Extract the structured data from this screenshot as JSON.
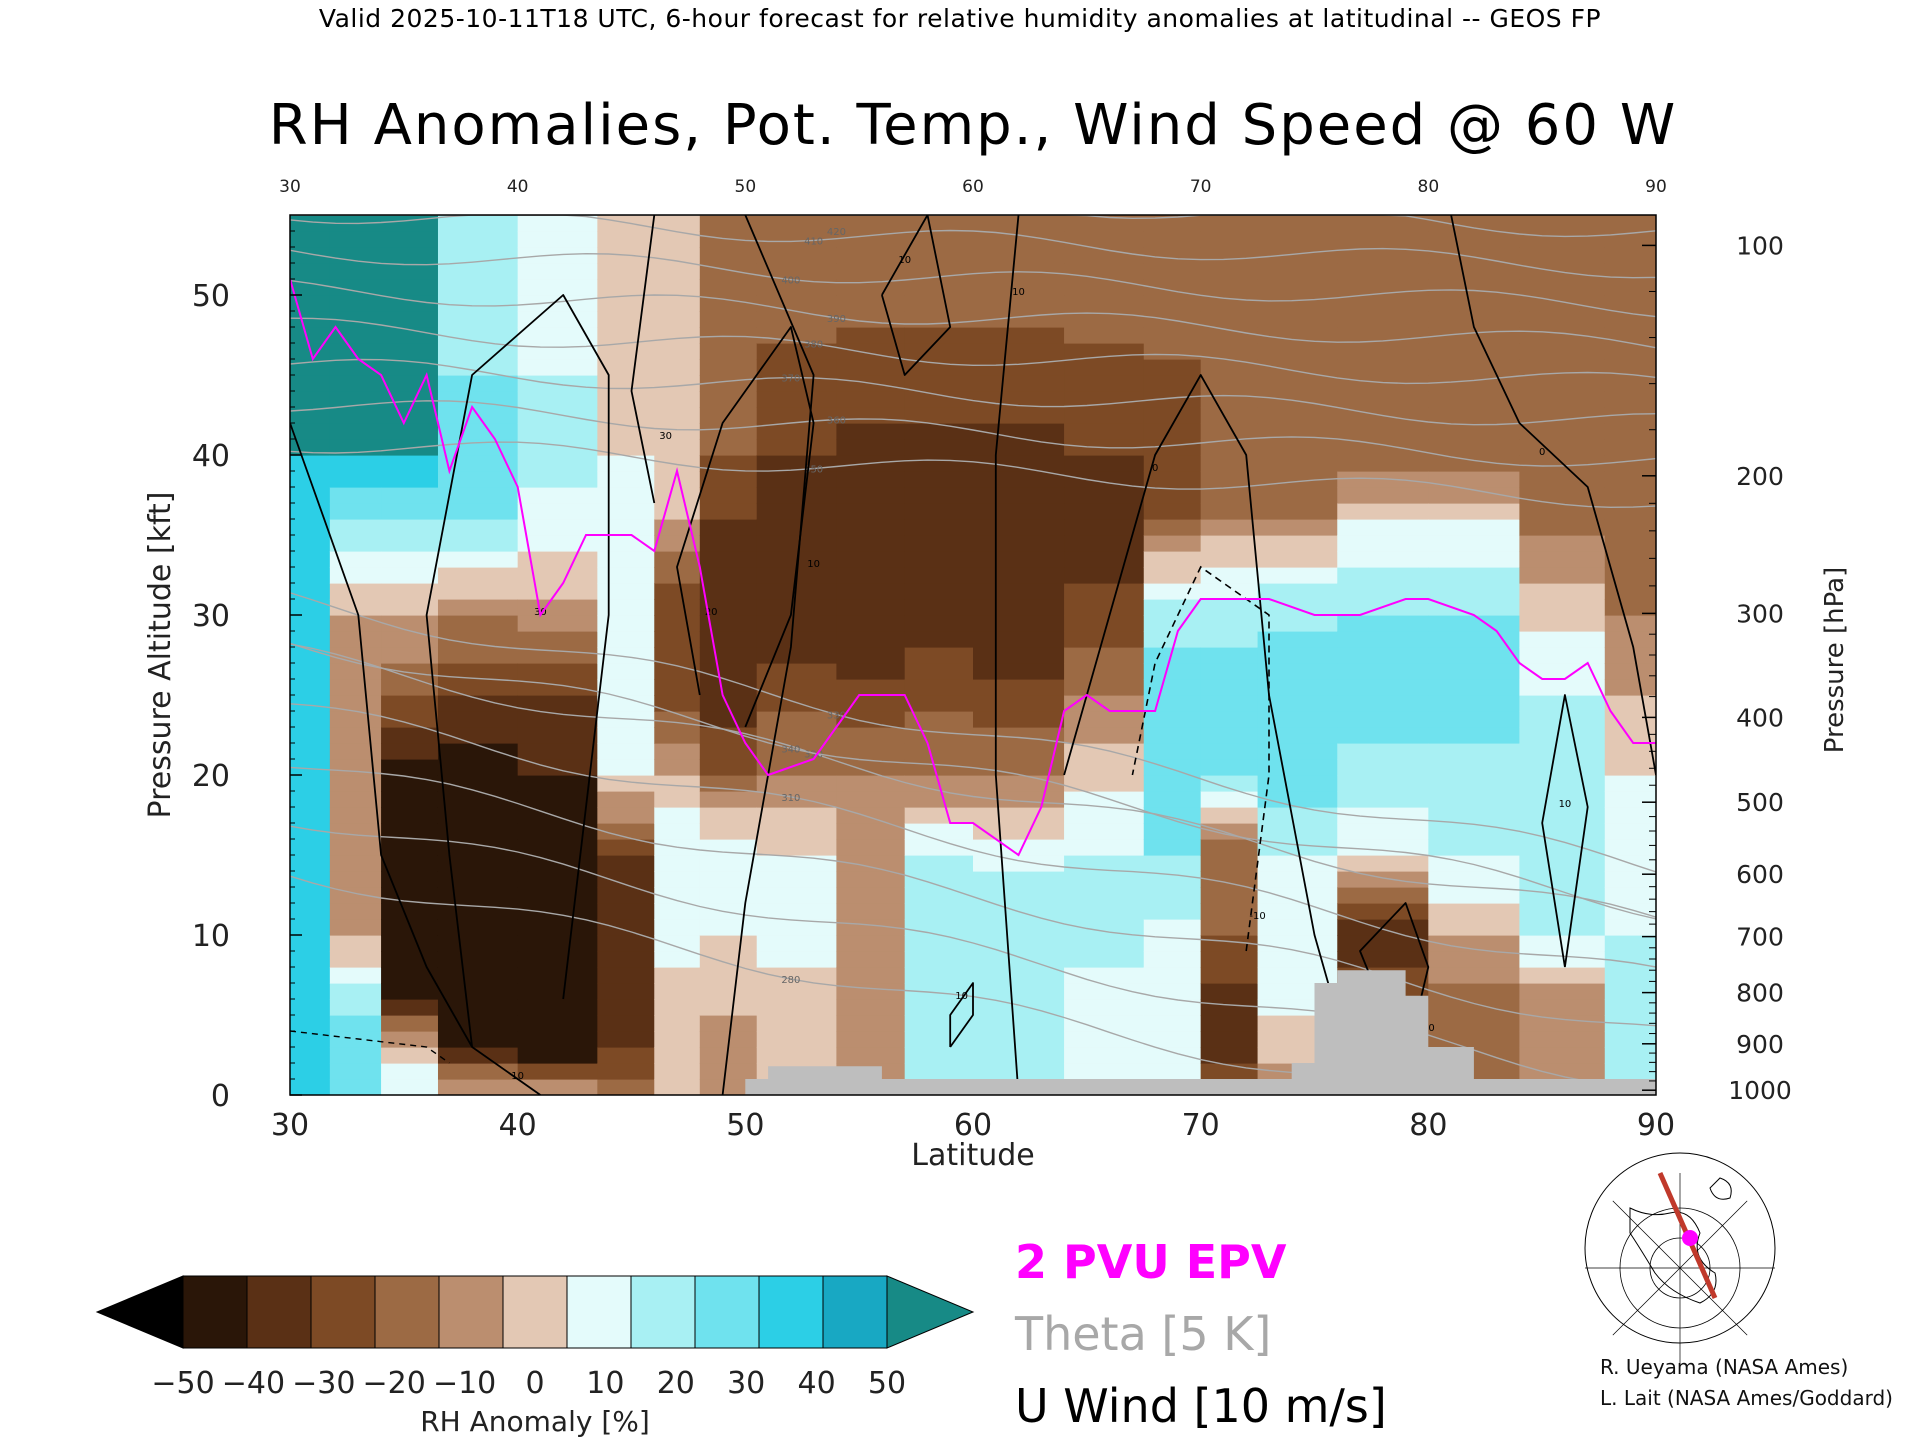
{
  "header": "Valid 2025-10-11T18 UTC, 6-hour forecast for relative humidity anomalies at latitudinal -- GEOS FP",
  "chart_data": {
    "type": "heatmap",
    "title": "RH Anomalies, Pot. Temp., Wind Speed @ 60 W",
    "xlabel": "Latitude",
    "ylabel": "Pressure Altitude [kft]",
    "y2label": "Pressure [hPa]",
    "xlim": [
      30,
      90
    ],
    "ylim": [
      0,
      55
    ],
    "x_ticks": [
      "30",
      "40",
      "50",
      "60",
      "70",
      "80",
      "90"
    ],
    "y_ticks": [
      "0",
      "10",
      "20",
      "30",
      "40",
      "50"
    ],
    "y_tick_values": [
      0,
      10,
      20,
      30,
      40,
      50
    ],
    "pressure_ticks": [
      {
        "label": "100",
        "kft": 53.1
      },
      {
        "label": "200",
        "kft": 38.7
      },
      {
        "label": "300",
        "kft": 30.1
      },
      {
        "label": "400",
        "kft": 23.6
      },
      {
        "label": "500",
        "kft": 18.3
      },
      {
        "label": "600",
        "kft": 13.8
      },
      {
        "label": "700",
        "kft": 9.9
      },
      {
        "label": "800",
        "kft": 6.4
      },
      {
        "label": "900",
        "kft": 3.2
      },
      {
        "label": "1000",
        "kft": 0.3
      }
    ],
    "colorbar": {
      "label": "RH Anomaly [%]",
      "ticks": [
        "−50",
        "−40",
        "−30",
        "−20",
        "−10",
        "0",
        "10",
        "20",
        "30",
        "40",
        "50"
      ],
      "colors": [
        "#2a1608",
        "#5a3015",
        "#7d4a25",
        "#9c6a44",
        "#bb8e6f",
        "#e3c8b4",
        "#e4fbfb",
        "#a8f0f3",
        "#6fe2ee",
        "#2ccfe6",
        "#18a8c3"
      ],
      "under_color": "#000000",
      "over_color": "#178a86"
    },
    "rh_anomaly_columns": [
      {
        "lat": 30.5,
        "profile": [
          [
            0,
            40
          ],
          [
            10,
            40
          ],
          [
            20,
            40
          ],
          [
            30,
            40
          ],
          [
            40,
            50
          ],
          [
            55,
            50
          ]
        ]
      },
      {
        "lat": 33,
        "profile": [
          [
            0,
            30
          ],
          [
            5,
            30
          ],
          [
            10,
            0
          ],
          [
            20,
            -10
          ],
          [
            30,
            0
          ],
          [
            40,
            50
          ],
          [
            55,
            50
          ]
        ]
      },
      {
        "lat": 35,
        "profile": [
          [
            0,
            20
          ],
          [
            3,
            0
          ],
          [
            6,
            -40
          ],
          [
            12,
            -50
          ],
          [
            20,
            -45
          ],
          [
            25,
            -20
          ],
          [
            32,
            10
          ],
          [
            40,
            50
          ],
          [
            55,
            50
          ]
        ]
      },
      {
        "lat": 38,
        "profile": [
          [
            0,
            0
          ],
          [
            3,
            -40
          ],
          [
            6,
            -50
          ],
          [
            12,
            -50
          ],
          [
            20,
            -50
          ],
          [
            25,
            -30
          ],
          [
            30,
            -10
          ],
          [
            36,
            30
          ],
          [
            45,
            30
          ],
          [
            55,
            20
          ]
        ]
      },
      {
        "lat": 42,
        "profile": [
          [
            0,
            0
          ],
          [
            3,
            -50
          ],
          [
            7,
            -50
          ],
          [
            15,
            -50
          ],
          [
            25,
            -30
          ],
          [
            31,
            0
          ],
          [
            38,
            20
          ],
          [
            45,
            20
          ],
          [
            55,
            10
          ]
        ]
      },
      {
        "lat": 45,
        "profile": [
          [
            0,
            -10
          ],
          [
            4,
            -40
          ],
          [
            8,
            -40
          ],
          [
            15,
            -30
          ],
          [
            20,
            10
          ],
          [
            30,
            10
          ],
          [
            40,
            10
          ],
          [
            55,
            0
          ]
        ]
      },
      {
        "lat": 47,
        "profile": [
          [
            0,
            0
          ],
          [
            8,
            10
          ],
          [
            15,
            20
          ],
          [
            20,
            0
          ],
          [
            26,
            -30
          ],
          [
            30,
            -30
          ],
          [
            36,
            0
          ],
          [
            45,
            10
          ],
          [
            55,
            0
          ]
        ]
      },
      {
        "lat": 49,
        "profile": [
          [
            0,
            -10
          ],
          [
            10,
            10
          ],
          [
            15,
            20
          ],
          [
            20,
            -20
          ],
          [
            26,
            -40
          ],
          [
            33,
            -40
          ],
          [
            40,
            -20
          ],
          [
            55,
            -10
          ]
        ]
      },
      {
        "lat": 52,
        "profile": [
          [
            0,
            0
          ],
          [
            8,
            10
          ],
          [
            15,
            10
          ],
          [
            20,
            -10
          ],
          [
            27,
            -30
          ],
          [
            34,
            -40
          ],
          [
            40,
            -30
          ],
          [
            55,
            -10
          ]
        ]
      },
      {
        "lat": 56,
        "profile": [
          [
            0,
            -10
          ],
          [
            10,
            -10
          ],
          [
            20,
            -10
          ],
          [
            26,
            -30
          ],
          [
            34,
            -40
          ],
          [
            42,
            -30
          ],
          [
            55,
            -10
          ]
        ]
      },
      {
        "lat": 58,
        "profile": [
          [
            0,
            20
          ],
          [
            8,
            30
          ],
          [
            15,
            20
          ],
          [
            20,
            -10
          ],
          [
            28,
            -30
          ],
          [
            34,
            -40
          ],
          [
            42,
            -30
          ],
          [
            55,
            -10
          ]
        ]
      },
      {
        "lat": 62,
        "profile": [
          [
            0,
            20
          ],
          [
            8,
            30
          ],
          [
            14,
            20
          ],
          [
            20,
            -10
          ],
          [
            28,
            -35
          ],
          [
            34,
            -40
          ],
          [
            42,
            -30
          ],
          [
            55,
            -10
          ]
        ]
      },
      {
        "lat": 66,
        "profile": [
          [
            0,
            10
          ],
          [
            8,
            20
          ],
          [
            15,
            20
          ],
          [
            22,
            0
          ],
          [
            28,
            -20
          ],
          [
            34,
            -35
          ],
          [
            40,
            -30
          ],
          [
            55,
            -10
          ]
        ]
      },
      {
        "lat": 69,
        "profile": [
          [
            0,
            20
          ],
          [
            8,
            10
          ],
          [
            15,
            30
          ],
          [
            22,
            30
          ],
          [
            28,
            30
          ],
          [
            31,
            20
          ],
          [
            36,
            -20
          ],
          [
            42,
            -25
          ],
          [
            55,
            -10
          ]
        ]
      },
      {
        "lat": 71,
        "profile": [
          [
            0,
            -20
          ],
          [
            4,
            -40
          ],
          [
            10,
            -20
          ],
          [
            15,
            -20
          ],
          [
            20,
            30
          ],
          [
            28,
            30
          ],
          [
            33,
            10
          ],
          [
            38,
            -20
          ],
          [
            55,
            -10
          ]
        ]
      },
      {
        "lat": 74,
        "profile": [
          [
            0,
            -10
          ],
          [
            5,
            10
          ],
          [
            12,
            10
          ],
          [
            18,
            30
          ],
          [
            25,
            40
          ],
          [
            32,
            20
          ],
          [
            37,
            -20
          ],
          [
            55,
            -10
          ]
        ]
      },
      {
        "lat": 78,
        "profile": [
          [
            0,
            0
          ],
          [
            6,
            -20
          ],
          [
            10,
            -40
          ],
          [
            15,
            10
          ],
          [
            22,
            30
          ],
          [
            30,
            30
          ],
          [
            36,
            10
          ],
          [
            40,
            -20
          ],
          [
            55,
            -10
          ]
        ]
      },
      {
        "lat": 82,
        "profile": [
          [
            0,
            -10
          ],
          [
            5,
            -20
          ],
          [
            10,
            0
          ],
          [
            15,
            20
          ],
          [
            22,
            30
          ],
          [
            30,
            30
          ],
          [
            36,
            10
          ],
          [
            40,
            -20
          ],
          [
            55,
            -10
          ]
        ]
      },
      {
        "lat": 86,
        "profile": [
          [
            0,
            0
          ],
          [
            5,
            -10
          ],
          [
            10,
            20
          ],
          [
            18,
            30
          ],
          [
            25,
            20
          ],
          [
            32,
            0
          ],
          [
            37,
            -20
          ],
          [
            55,
            -10
          ]
        ]
      },
      {
        "lat": 89.5,
        "profile": [
          [
            0,
            20
          ],
          [
            10,
            20
          ],
          [
            20,
            10
          ],
          [
            30,
            -10
          ],
          [
            40,
            -20
          ],
          [
            55,
            -10
          ]
        ]
      }
    ],
    "theta_contours_K": [
      280,
      290,
      300,
      310,
      320,
      330,
      340,
      350,
      360,
      370,
      380,
      390,
      400,
      410,
      420
    ],
    "theta_printed_labels": [
      "280",
      "310",
      "320",
      "330",
      "340",
      "350",
      "360",
      "370",
      "380",
      "390",
      "400",
      "410",
      "420"
    ],
    "u_wind_contours_ms": [
      -10,
      0,
      10,
      20,
      30
    ],
    "u_wind_printed_labels": [
      "-10",
      "0",
      "10",
      "20",
      "30"
    ],
    "epv_2pvu": [
      [
        30,
        51
      ],
      [
        31,
        46
      ],
      [
        32,
        48
      ],
      [
        33,
        46
      ],
      [
        34,
        45
      ],
      [
        35,
        42
      ],
      [
        36,
        45
      ],
      [
        37,
        39
      ],
      [
        38,
        43
      ],
      [
        39,
        41
      ],
      [
        40,
        38
      ],
      [
        41,
        30
      ],
      [
        42,
        32
      ],
      [
        43,
        35
      ],
      [
        45,
        35
      ],
      [
        46,
        34
      ],
      [
        47,
        39
      ],
      [
        48,
        33
      ],
      [
        49,
        25
      ],
      [
        50,
        22
      ],
      [
        51,
        20
      ],
      [
        53,
        21
      ],
      [
        55,
        25
      ],
      [
        57,
        25
      ],
      [
        58,
        22
      ],
      [
        59,
        17
      ],
      [
        60,
        17
      ],
      [
        62,
        15
      ],
      [
        63,
        18
      ],
      [
        64,
        24
      ],
      [
        65,
        25
      ],
      [
        66,
        24
      ],
      [
        67,
        24
      ],
      [
        68,
        24
      ],
      [
        69,
        29
      ],
      [
        70,
        31
      ],
      [
        71,
        31
      ],
      [
        73,
        31
      ],
      [
        75,
        30
      ],
      [
        77,
        30
      ],
      [
        79,
        31
      ],
      [
        80,
        31
      ],
      [
        82,
        30
      ],
      [
        83,
        29
      ],
      [
        84,
        27
      ],
      [
        85,
        26
      ],
      [
        86,
        26
      ],
      [
        87,
        27
      ],
      [
        88,
        24
      ],
      [
        89,
        22
      ],
      [
        90,
        22
      ]
    ],
    "topography_kft": [
      [
        30,
        0
      ],
      [
        50,
        0
      ],
      [
        50,
        1
      ],
      [
        51,
        1
      ],
      [
        51,
        1.8
      ],
      [
        56,
        1.8
      ],
      [
        56,
        1
      ],
      [
        57,
        1
      ],
      [
        57,
        1
      ],
      [
        63,
        1
      ],
      [
        69,
        1
      ],
      [
        74,
        1
      ],
      [
        74,
        2
      ],
      [
        75,
        2
      ],
      [
        75,
        7
      ],
      [
        76,
        7
      ],
      [
        76,
        7.8
      ],
      [
        79,
        7.8
      ],
      [
        79,
        6.2
      ],
      [
        80,
        6.2
      ],
      [
        80,
        3
      ],
      [
        82,
        3
      ],
      [
        82,
        1
      ],
      [
        90,
        1
      ],
      [
        90,
        0
      ]
    ],
    "legend": {
      "epv": "2 PVU EPV",
      "theta": "Theta [5 K]",
      "wind": "U Wind [10 m/s]"
    },
    "credits": [
      "R. Ueyama (NASA Ames)",
      "L. Lait (NASA Ames/Goddard)"
    ],
    "colors": {
      "epv": "#ff00ff",
      "theta": "#a8a8a8",
      "wind": "#000000",
      "topography": "#bebebe",
      "map_track": "#c0392b"
    }
  }
}
